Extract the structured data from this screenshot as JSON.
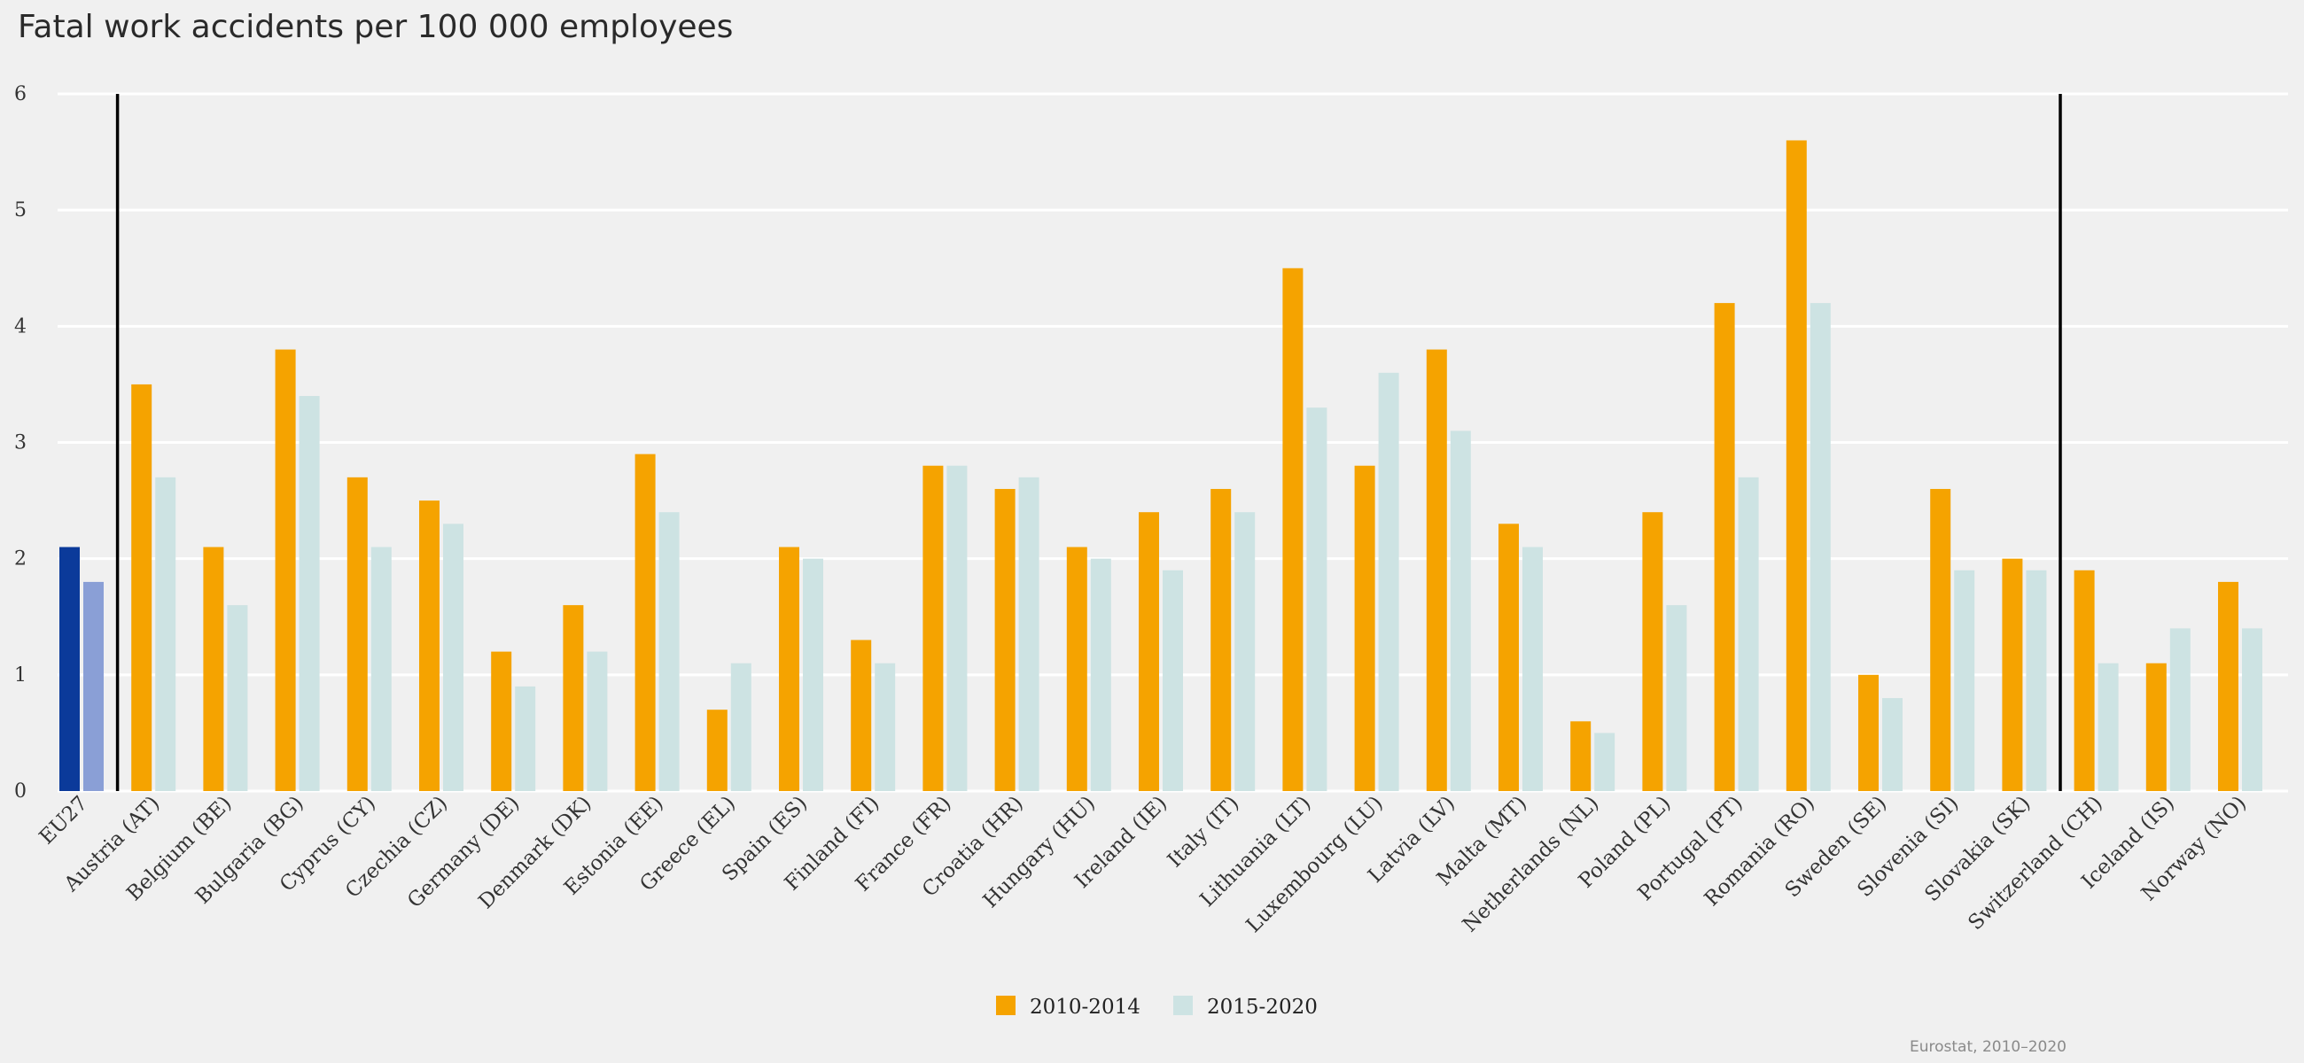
{
  "chart_data": {
    "type": "bar",
    "title": "Fatal work accidents per 100 000 employees",
    "source": "Eurostat, 2010–2020",
    "ylim": [
      0,
      6
    ],
    "yticks": [
      "0",
      "1",
      "2",
      "3",
      "4",
      "5",
      "6"
    ],
    "grid": true,
    "legend_position": "bottom-center",
    "categories": [
      "EU27",
      "Austria (AT)",
      "Belgium (BE)",
      "Bulgaria (BG)",
      "Cyprus (CY)",
      "Czechia (CZ)",
      "Germany (DE)",
      "Denmark (DK)",
      "Estonia (EE)",
      "Greece (EL)",
      "Spain (ES)",
      "Finland (FI)",
      "France (FR)",
      "Croatia (HR)",
      "Hungary (HU)",
      "Ireland (IE)",
      "Italy (IT)",
      "Lithuania (LT)",
      "Luxembourg (LU)",
      "Latvia (LV)",
      "Malta (MT)",
      "Netherlands (NL)",
      "Poland (PL)",
      "Portugal (PT)",
      "Romania (RO)",
      "Sweden (SE)",
      "Slovenia (SI)",
      "Slovakia (SK)",
      "Switzerland (CH)",
      "Iceland (IS)",
      "Norway (NO)"
    ],
    "series": [
      {
        "name": "2010-2014",
        "color": "#f5a300",
        "highlight_color": "#0b3a9a",
        "values": [
          2.1,
          3.5,
          2.1,
          3.8,
          2.7,
          2.5,
          1.2,
          1.6,
          2.9,
          0.7,
          2.1,
          1.3,
          2.8,
          2.6,
          2.1,
          2.4,
          2.6,
          4.5,
          2.8,
          3.8,
          2.3,
          0.6,
          2.4,
          4.2,
          5.6,
          1.0,
          2.6,
          2.0,
          1.9,
          1.1,
          1.8
        ]
      },
      {
        "name": "2015-2020",
        "color": "#cde3e3",
        "highlight_color": "#8a9fd6",
        "values": [
          1.8,
          2.7,
          1.6,
          3.4,
          2.1,
          2.3,
          0.9,
          1.2,
          2.4,
          1.1,
          2.0,
          1.1,
          2.8,
          2.7,
          2.0,
          1.9,
          2.4,
          3.3,
          3.6,
          3.1,
          2.1,
          0.5,
          1.6,
          2.7,
          4.2,
          0.8,
          1.9,
          1.9,
          1.1,
          1.4,
          1.4
        ]
      }
    ],
    "separator_after_categories": [
      "EU27",
      "Slovakia (SK)"
    ]
  }
}
